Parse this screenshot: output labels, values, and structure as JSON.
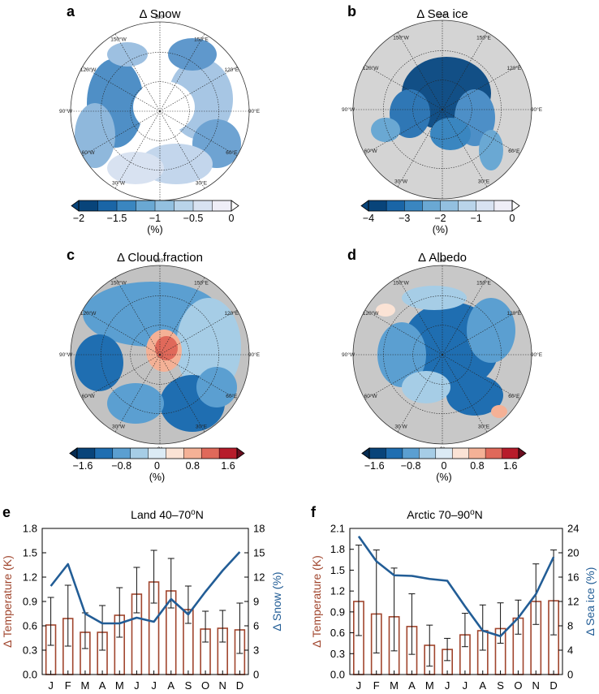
{
  "maps": [
    {
      "label": "a",
      "title": "Δ Snow",
      "colorbar": {
        "ticks": [
          "−2",
          "−1.5",
          "−1",
          "−0.5",
          "0"
        ],
        "unit": "(%)",
        "colors": [
          "#08447a",
          "#1a65a6",
          "#3a86c0",
          "#6aa8d3",
          "#93c0e0",
          "#b9d4ea",
          "#d8e2f1",
          "#efeef7"
        ]
      }
    },
    {
      "label": "b",
      "title": "Δ Sea ice",
      "colorbar": {
        "ticks": [
          "−4",
          "−3",
          "−2",
          "−1",
          "0"
        ],
        "unit": "(%)",
        "colors": [
          "#08447a",
          "#1a65a6",
          "#3a86c0",
          "#6aa8d3",
          "#93c0e0",
          "#b9d4ea",
          "#d8e2f1",
          "#efeef7"
        ]
      }
    },
    {
      "label": "c",
      "title": "Δ Cloud fraction",
      "colorbar": {
        "ticks": [
          "−1.6",
          "−0.8",
          "0",
          "0.8",
          "1.6"
        ],
        "unit": "(%)",
        "colors": [
          "#08447a",
          "#1f6eb1",
          "#5b9fd1",
          "#a6cde6",
          "#dcebf5",
          "#fbe3d5",
          "#f4b196",
          "#e0695a",
          "#b71c2b"
        ]
      }
    },
    {
      "label": "d",
      "title": "Δ Albedo",
      "colorbar": {
        "ticks": [
          "−1.6",
          "−0.8",
          "0",
          "0.8",
          "1.6"
        ],
        "unit": "(%)",
        "colors": [
          "#08447a",
          "#1f6eb1",
          "#5b9fd1",
          "#a6cde6",
          "#dcebf5",
          "#fbe3d5",
          "#f4b196",
          "#e0695a",
          "#b71c2b"
        ]
      }
    }
  ],
  "lon_labels": [
    "180°",
    "150°E",
    "120°E",
    "90°E",
    "60°E",
    "30°E",
    "0°",
    "30°W",
    "60°W",
    "90°W",
    "120°W",
    "150°W"
  ],
  "lon_labels_d_30w": "30 W",
  "chart_data": [
    {
      "label": "e",
      "type": "bar",
      "title": "Land 40–70",
      "title_sup": "o",
      "title_suffix": "N",
      "categories": [
        "J",
        "F",
        "M",
        "A",
        "M",
        "J",
        "J",
        "A",
        "S",
        "O",
        "N",
        "D"
      ],
      "series": [
        {
          "name": "Δ Temperature (K)",
          "type": "bar",
          "axis": "left",
          "color": "#a0452d",
          "values": [
            0.61,
            0.69,
            0.52,
            0.52,
            0.73,
            0.99,
            1.14,
            1.03,
            0.8,
            0.56,
            0.57,
            0.55
          ],
          "error_low": [
            0.36,
            0.35,
            0.32,
            0.3,
            0.46,
            0.76,
            0.88,
            0.82,
            0.63,
            0.4,
            0.4,
            0.26
          ],
          "error_high": [
            0.95,
            1.1,
            0.76,
            0.85,
            1.07,
            1.32,
            1.53,
            1.43,
            1.09,
            0.78,
            0.79,
            0.88
          ]
        },
        {
          "name": "Δ Snow (%)",
          "type": "line",
          "axis": "right",
          "color": "#225d96",
          "values": [
            10.9,
            13.6,
            7.5,
            6.3,
            6.3,
            7.0,
            6.5,
            9.3,
            7.4,
            10.2,
            12.8,
            15.1
          ]
        }
      ],
      "ylabel_left": "Δ Temperature (K)",
      "ylabel_right": "Δ Snow (%)",
      "ylim_left": [
        0,
        1.8
      ],
      "ylim_right": [
        0,
        18
      ],
      "yticks_left": [
        "0.0",
        "0.3",
        "0.6",
        "0.9",
        "1.2",
        "1.5",
        "1.8"
      ],
      "yticks_right": [
        "0",
        "3",
        "6",
        "9",
        "12",
        "15",
        "18"
      ]
    },
    {
      "label": "f",
      "type": "bar",
      "title": "Arctic 70–90",
      "title_sup": "o",
      "title_suffix": "N",
      "categories": [
        "J",
        "F",
        "M",
        "A",
        "M",
        "J",
        "J",
        "A",
        "S",
        "O",
        "N",
        "D"
      ],
      "series": [
        {
          "name": "Δ Temperature (K)",
          "type": "bar",
          "axis": "left",
          "color": "#a0452d",
          "values": [
            1.05,
            0.87,
            0.83,
            0.69,
            0.42,
            0.36,
            0.57,
            0.63,
            0.66,
            0.81,
            1.05,
            1.06
          ],
          "error_low": [
            0.56,
            0.31,
            0.34,
            0.29,
            0.12,
            0.2,
            0.4,
            0.35,
            0.45,
            0.58,
            0.72,
            0.57
          ],
          "error_high": [
            1.86,
            1.79,
            1.53,
            1.16,
            0.71,
            0.52,
            0.88,
            1.0,
            1.03,
            1.07,
            1.59,
            1.79
          ]
        },
        {
          "name": "Δ Sea ice (%)",
          "type": "line",
          "axis": "right",
          "color": "#225d96",
          "values": [
            22.7,
            18.6,
            16.3,
            16.2,
            15.7,
            15.4,
            11.2,
            7.2,
            6.3,
            9.3,
            13.2,
            19.3
          ]
        }
      ],
      "ylabel_left": "Δ Temperature (K)",
      "ylabel_right": "Δ Sea ice (%)",
      "ylim_left": [
        0,
        2.1
      ],
      "ylim_right": [
        0,
        24
      ],
      "yticks_left": [
        "0.0",
        "0.3",
        "0.6",
        "0.9",
        "1.2",
        "1.5",
        "1.8",
        "2.1"
      ],
      "yticks_right": [
        "0",
        "4",
        "8",
        "12",
        "16",
        "20",
        "24"
      ]
    }
  ]
}
